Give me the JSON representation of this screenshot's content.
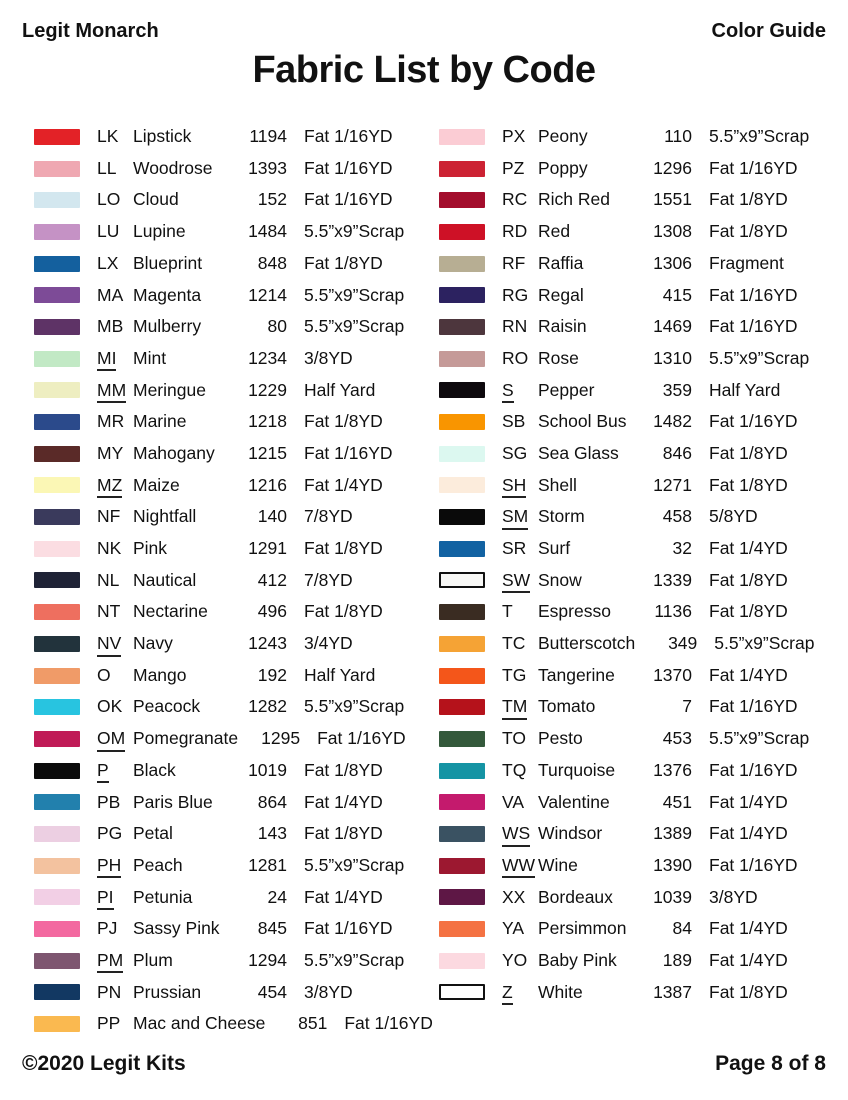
{
  "header": {
    "brand": "Legit Monarch",
    "guide_label": "Color Guide",
    "title": "Fabric List by Code"
  },
  "footer": {
    "copyright": "©2020 Legit Kits",
    "page_indicator": "Page 8 of 8"
  },
  "columns": {
    "left": [
      {
        "code": "LK",
        "name": "Lipstick",
        "num": "1194",
        "cut": "Fat 1/16YD",
        "color": "#e32227",
        "underline": false,
        "outlined": false
      },
      {
        "code": "LL",
        "name": "Woodrose",
        "num": "1393",
        "cut": "Fat 1/16YD",
        "color": "#efa8b2",
        "underline": false,
        "outlined": false
      },
      {
        "code": "LO",
        "name": "Cloud",
        "num": "152",
        "cut": "Fat 1/16YD",
        "color": "#d3e7ef",
        "underline": false,
        "outlined": false
      },
      {
        "code": "LU",
        "name": "Lupine",
        "num": "1484",
        "cut": "5.5”x9”Scrap",
        "color": "#c592c5",
        "underline": false,
        "outlined": false
      },
      {
        "code": "LX",
        "name": "Blueprint",
        "num": "848",
        "cut": "Fat 1/8YD",
        "color": "#14609e",
        "underline": false,
        "outlined": false
      },
      {
        "code": "MA",
        "name": "Magenta",
        "num": "1214",
        "cut": "5.5”x9”Scrap",
        "color": "#7d4b97",
        "underline": false,
        "outlined": false
      },
      {
        "code": "MB",
        "name": "Mulberry",
        "num": "80",
        "cut": "5.5”x9”Scrap",
        "color": "#5e3366",
        "underline": false,
        "outlined": false
      },
      {
        "code": "MI",
        "name": "Mint",
        "num": "1234",
        "cut": "3/8YD",
        "color": "#c2e9c5",
        "underline": true,
        "outlined": false
      },
      {
        "code": "MM",
        "name": "Meringue",
        "num": "1229",
        "cut": "Half Yard",
        "color": "#eeeec1",
        "underline": true,
        "outlined": false
      },
      {
        "code": "MR",
        "name": "Marine",
        "num": "1218",
        "cut": "Fat 1/8YD",
        "color": "#2b4a8b",
        "underline": false,
        "outlined": false
      },
      {
        "code": "MY",
        "name": "Mahogany",
        "num": "1215",
        "cut": "Fat 1/16YD",
        "color": "#5a2a28",
        "underline": false,
        "outlined": false
      },
      {
        "code": "MZ",
        "name": "Maize",
        "num": "1216",
        "cut": "Fat 1/4YD",
        "color": "#fbf7b5",
        "underline": true,
        "outlined": false
      },
      {
        "code": "NF",
        "name": "Nightfall",
        "num": "140",
        "cut": "7/8YD",
        "color": "#3a3a5c",
        "underline": false,
        "outlined": false
      },
      {
        "code": "NK",
        "name": "Pink",
        "num": "1291",
        "cut": "Fat 1/8YD",
        "color": "#fbdde2",
        "underline": false,
        "outlined": false
      },
      {
        "code": "NL",
        "name": "Nautical",
        "num": "412",
        "cut": "7/8YD",
        "color": "#1f2336",
        "underline": false,
        "outlined": false
      },
      {
        "code": "NT",
        "name": "Nectarine",
        "num": "496",
        "cut": "Fat 1/8YD",
        "color": "#ee6f5f",
        "underline": false,
        "outlined": false
      },
      {
        "code": "NV",
        "name": "Navy",
        "num": "1243",
        "cut": "3/4YD",
        "color": "#22333c",
        "underline": true,
        "outlined": false
      },
      {
        "code": "O",
        "name": "Mango",
        "num": "192",
        "cut": "Half Yard",
        "color": "#f09b68",
        "underline": false,
        "outlined": false
      },
      {
        "code": "OK",
        "name": "Peacock",
        "num": "1282",
        "cut": "5.5”x9”Scrap",
        "color": "#28c4e0",
        "underline": false,
        "outlined": false
      },
      {
        "code": "OM",
        "name": "Pomegranate",
        "num": "1295",
        "cut": "Fat 1/16YD",
        "color": "#c01b57",
        "underline": true,
        "outlined": false
      },
      {
        "code": "P",
        "name": "Black",
        "num": "1019",
        "cut": "Fat 1/8YD",
        "color": "#0b0b0b",
        "underline": true,
        "outlined": false
      },
      {
        "code": "PB",
        "name": "Paris Blue",
        "num": "864",
        "cut": "Fat 1/4YD",
        "color": "#2280ad",
        "underline": false,
        "outlined": false
      },
      {
        "code": "PG",
        "name": "Petal",
        "num": "143",
        "cut": "Fat 1/8YD",
        "color": "#eccfe2",
        "underline": false,
        "outlined": false
      },
      {
        "code": "PH",
        "name": "Peach",
        "num": "1281",
        "cut": "5.5”x9”Scrap",
        "color": "#f3c29f",
        "underline": true,
        "outlined": false
      },
      {
        "code": "PI",
        "name": "Petunia",
        "num": "24",
        "cut": "Fat 1/4YD",
        "color": "#f2cfe5",
        "underline": true,
        "outlined": false
      },
      {
        "code": "PJ",
        "name": "Sassy Pink",
        "num": "845",
        "cut": "Fat 1/16YD",
        "color": "#f369a0",
        "underline": false,
        "outlined": false
      },
      {
        "code": "PM",
        "name": "Plum",
        "num": "1294",
        "cut": "5.5”x9”Scrap",
        "color": "#7e5670",
        "underline": true,
        "outlined": false
      },
      {
        "code": "PN",
        "name": "Prussian",
        "num": "454",
        "cut": "3/8YD",
        "color": "#123862",
        "underline": false,
        "outlined": false
      },
      {
        "code": "PP",
        "name": "Mac and Cheese",
        "num": "851",
        "cut": "Fat 1/16YD",
        "color": "#fab950",
        "underline": false,
        "outlined": false
      }
    ],
    "right": [
      {
        "code": "PX",
        "name": "Peony",
        "num": "110",
        "cut": "5.5”x9”Scrap",
        "color": "#fbccd4",
        "underline": false,
        "outlined": false
      },
      {
        "code": "PZ",
        "name": "Poppy",
        "num": "1296",
        "cut": "Fat 1/16YD",
        "color": "#cc2233",
        "underline": false,
        "outlined": false
      },
      {
        "code": "RC",
        "name": "Rich Red",
        "num": "1551",
        "cut": "Fat 1/8YD",
        "color": "#a30d2c",
        "underline": false,
        "outlined": false
      },
      {
        "code": "RD",
        "name": "Red",
        "num": "1308",
        "cut": "Fat 1/8YD",
        "color": "#ce1126",
        "underline": false,
        "outlined": false
      },
      {
        "code": "RF",
        "name": "Raffia",
        "num": "1306",
        "cut": "Fragment",
        "color": "#b7ae93",
        "underline": false,
        "outlined": false
      },
      {
        "code": "RG",
        "name": "Regal",
        "num": "415",
        "cut": "Fat 1/16YD",
        "color": "#2c2260",
        "underline": false,
        "outlined": false
      },
      {
        "code": "RN",
        "name": "Raisin",
        "num": "1469",
        "cut": "Fat 1/16YD",
        "color": "#4d363d",
        "underline": false,
        "outlined": false
      },
      {
        "code": "RO",
        "name": "Rose",
        "num": "1310",
        "cut": "5.5”x9”Scrap",
        "color": "#c59a98",
        "underline": false,
        "outlined": false
      },
      {
        "code": "S",
        "name": "Pepper",
        "num": "359",
        "cut": "Half Yard",
        "color": "#0d090d",
        "underline": true,
        "outlined": false
      },
      {
        "code": "SB",
        "name": "School Bus",
        "num": "1482",
        "cut": "Fat 1/16YD",
        "color": "#f99500",
        "underline": false,
        "outlined": false
      },
      {
        "code": "SG",
        "name": "Sea Glass",
        "num": "846",
        "cut": "Fat 1/8YD",
        "color": "#dcf8f0",
        "underline": false,
        "outlined": false
      },
      {
        "code": "SH",
        "name": "Shell",
        "num": "1271",
        "cut": "Fat 1/8YD",
        "color": "#fcecdc",
        "underline": true,
        "outlined": false
      },
      {
        "code": "SM",
        "name": "Storm",
        "num": "458",
        "cut": "5/8YD",
        "color": "#0a0a0a",
        "underline": true,
        "outlined": false
      },
      {
        "code": "SR",
        "name": "Surf",
        "num": "32",
        "cut": "Fat 1/4YD",
        "color": "#1262a2",
        "underline": false,
        "outlined": false
      },
      {
        "code": "SW",
        "name": "Snow",
        "num": "1339",
        "cut": "Fat 1/8YD",
        "color": "#f8f8f6",
        "underline": true,
        "outlined": true
      },
      {
        "code": "T",
        "name": "Espresso",
        "num": "1136",
        "cut": "Fat 1/8YD",
        "color": "#3a2c22",
        "underline": false,
        "outlined": false
      },
      {
        "code": "TC",
        "name": "Butterscotch",
        "num": "349",
        "cut": "5.5”x9”Scrap",
        "color": "#f5a335",
        "underline": false,
        "outlined": false
      },
      {
        "code": "TG",
        "name": "Tangerine",
        "num": "1370",
        "cut": "Fat 1/4YD",
        "color": "#f4561a",
        "underline": false,
        "outlined": false
      },
      {
        "code": "TM",
        "name": "Tomato",
        "num": "7",
        "cut": "Fat 1/16YD",
        "color": "#b5121b",
        "underline": true,
        "outlined": false
      },
      {
        "code": "TO",
        "name": "Pesto",
        "num": "453",
        "cut": "5.5”x9”Scrap",
        "color": "#34593b",
        "underline": false,
        "outlined": false
      },
      {
        "code": "TQ",
        "name": "Turquoise",
        "num": "1376",
        "cut": "Fat 1/16YD",
        "color": "#1594a4",
        "underline": false,
        "outlined": false
      },
      {
        "code": "VA",
        "name": "Valentine",
        "num": "451",
        "cut": "Fat 1/4YD",
        "color": "#c41a6d",
        "underline": false,
        "outlined": false
      },
      {
        "code": "WS",
        "name": "Windsor",
        "num": "1389",
        "cut": "Fat 1/4YD",
        "color": "#3a5262",
        "underline": true,
        "outlined": false
      },
      {
        "code": "WW",
        "name": "Wine",
        "num": "1390",
        "cut": "Fat 1/16YD",
        "color": "#9c1830",
        "underline": true,
        "outlined": false
      },
      {
        "code": "XX",
        "name": "Bordeaux",
        "num": "1039",
        "cut": "3/8YD",
        "color": "#5e1745",
        "underline": false,
        "outlined": false
      },
      {
        "code": "YA",
        "name": "Persimmon",
        "num": "84",
        "cut": "Fat 1/4YD",
        "color": "#f47243",
        "underline": false,
        "outlined": false
      },
      {
        "code": "YO",
        "name": "Baby Pink",
        "num": "189",
        "cut": "Fat 1/4YD",
        "color": "#fcd9e0",
        "underline": false,
        "outlined": false
      },
      {
        "code": "Z",
        "name": "White",
        "num": "1387",
        "cut": "Fat 1/8YD",
        "color": "#fefefe",
        "underline": true,
        "outlined": true
      }
    ]
  }
}
